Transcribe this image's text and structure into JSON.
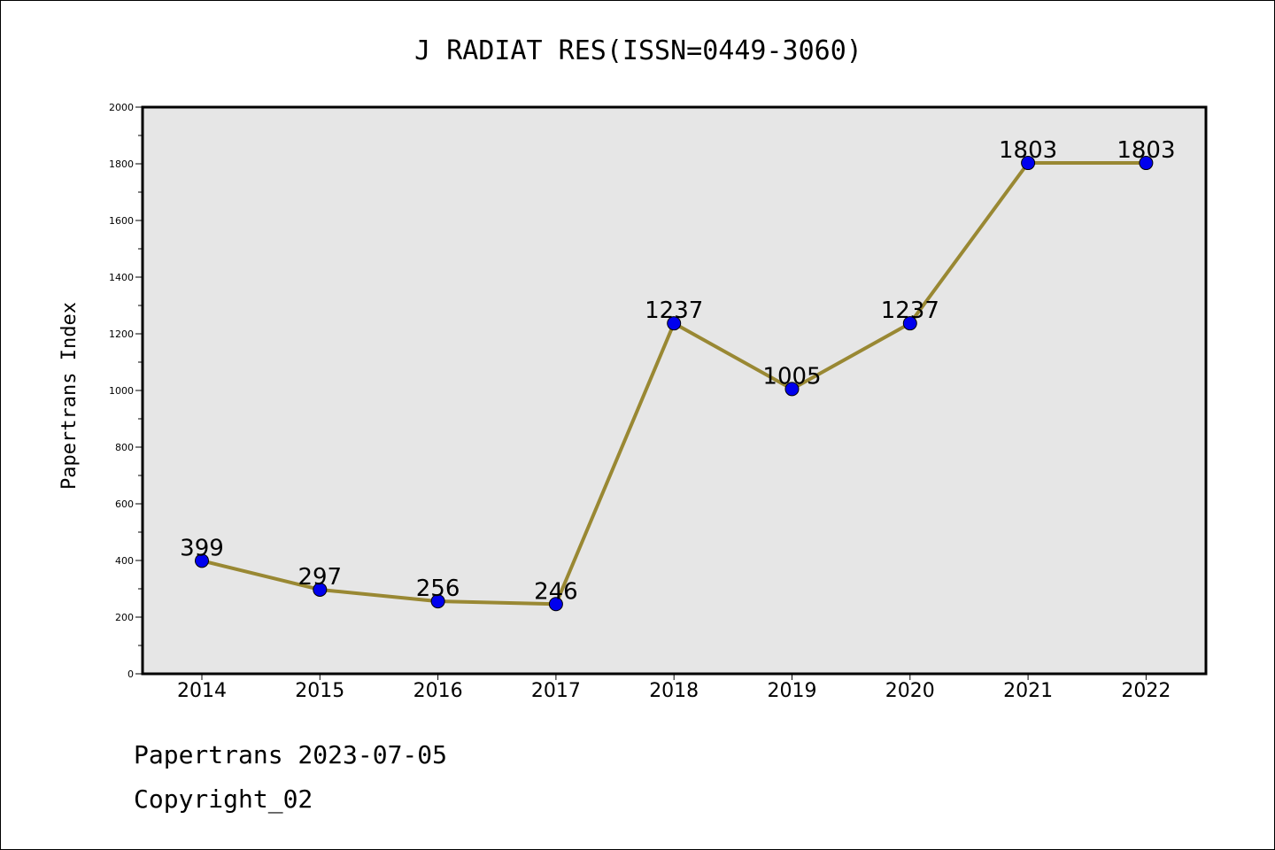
{
  "chart_data": {
    "type": "line",
    "title": "J RADIAT RES(ISSN=0449-3060)",
    "xlabel": "",
    "ylabel": "Papertrans Index",
    "categories": [
      "2014",
      "2015",
      "2016",
      "2017",
      "2018",
      "2019",
      "2020",
      "2021",
      "2022"
    ],
    "series": [
      {
        "values": [
          399,
          297,
          256,
          246,
          1237,
          1005,
          1237,
          1803,
          1803
        ],
        "data_labels": [
          "399",
          "297",
          "256",
          "246",
          "1237",
          "1005",
          "1237",
          "1803",
          "1803"
        ]
      }
    ],
    "ylim": [
      0,
      2000
    ],
    "y_ticks": [
      "0",
      "200",
      "400",
      "600",
      "800",
      "1000",
      "1200",
      "1400",
      "1600",
      "1800",
      "2000"
    ],
    "grid": false,
    "legend": "none",
    "colors": {
      "line": "#998833",
      "marker": "#0000ee",
      "plot_background": "#e6e6e6"
    }
  },
  "footer": {
    "date_line": "Papertrans 2023-07-05",
    "copyright_line": "Copyright_02"
  }
}
